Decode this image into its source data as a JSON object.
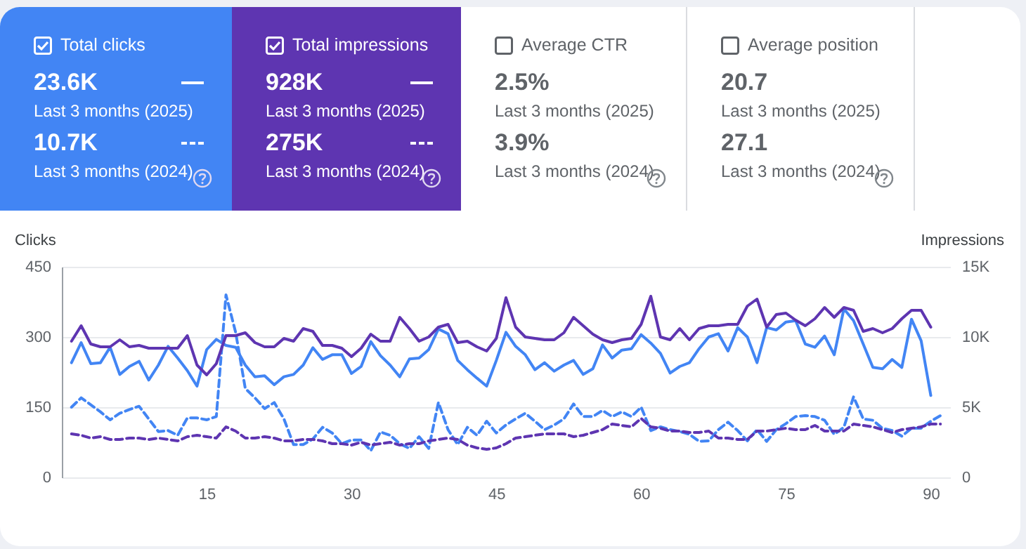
{
  "chart_data": [
    {
      "type": "other",
      "title": "Total clicks",
      "color": "#4285f4",
      "annotations": [
        "23.6K",
        "Last 3 months (2025)",
        "10.7K",
        "Last 3 months (2024)"
      ]
    },
    {
      "type": "other",
      "title": "Total impressions",
      "color": "#5e35b1",
      "annotations": [
        "928K",
        "Last 3 months (2025)",
        "275K",
        "Last 3 months (2024)"
      ]
    },
    {
      "type": "other",
      "title": "Average CTR",
      "annotations": [
        "2.5%",
        "Last 3 months (2025)",
        "3.9%",
        "Last 3 months (2024)"
      ]
    },
    {
      "type": "other",
      "title": "Average position",
      "annotations": [
        "20.7",
        "Last 3 months (2025)",
        "27.1",
        "Last 3 months (2024)"
      ]
    },
    {
      "type": "line",
      "ylabel": "Clicks",
      "y2label": "Impressions",
      "xlim": [
        0,
        92
      ],
      "xticks": [
        15,
        30,
        45,
        60,
        75,
        90
      ],
      "ylim": [
        0,
        450
      ],
      "yticks": [
        0,
        150,
        300,
        450
      ],
      "y2lim": [
        0,
        15000
      ],
      "y2ticks": [
        0,
        {
          "value": 5000,
          "label": "5K"
        },
        {
          "value": 10000,
          "label": "10K"
        },
        {
          "value": 15000,
          "label": "15K"
        }
      ],
      "grid": "y",
      "legend": false,
      "marker": "none",
      "x": [
        1,
        2,
        3,
        4,
        5,
        6,
        7,
        8,
        9,
        10,
        11,
        12,
        13,
        14,
        15,
        16,
        17,
        18,
        19,
        20,
        21,
        22,
        23,
        24,
        25,
        26,
        27,
        28,
        29,
        30,
        31,
        32,
        33,
        34,
        35,
        36,
        37,
        38,
        39,
        40,
        41,
        42,
        43,
        44,
        45,
        46,
        47,
        48,
        49,
        50,
        51,
        52,
        53,
        54,
        55,
        56,
        57,
        58,
        59,
        60,
        61,
        62,
        63,
        64,
        65,
        66,
        67,
        68,
        69,
        70,
        71,
        72,
        73,
        74,
        75,
        76,
        77,
        78,
        79,
        80,
        81,
        82,
        83,
        84,
        85,
        86,
        87,
        88,
        89,
        90
      ],
      "series": [
        {
          "color": "#5e35b1",
          "axis": "y2",
          "line_style": "solid",
          "values": [
            9700,
            10800,
            9500,
            9300,
            9300,
            9800,
            9300,
            9400,
            9200,
            9200,
            9200,
            9200,
            10100,
            8000,
            7300,
            8100,
            10100,
            10100,
            10300,
            9600,
            9300,
            9300,
            9900,
            9700,
            10600,
            10400,
            9400,
            9400,
            9200,
            8600,
            9200,
            10200,
            9700,
            9700,
            11400,
            10600,
            9700,
            10000,
            10700,
            10900,
            9600,
            9700,
            9300,
            9000,
            9900,
            12800,
            10700,
            10000,
            9900,
            9800,
            9800,
            10300,
            11400,
            10800,
            10200,
            9800,
            9600,
            9800,
            9900,
            10900,
            12900,
            10000,
            9800,
            10600,
            9800,
            10600,
            10800,
            10800,
            10900,
            10900,
            12200,
            12700,
            10700,
            11600,
            11700,
            11200,
            10800,
            11300,
            12100,
            11400,
            12100,
            11900,
            10400,
            10600,
            10300,
            10600,
            11300,
            11900,
            11900,
            10700
          ]
        },
        {
          "color": "#4285f4",
          "axis": "y",
          "line_style": "solid",
          "values": [
            245,
            288,
            243,
            245,
            278,
            220,
            237,
            248,
            208,
            240,
            280,
            255,
            228,
            195,
            273,
            295,
            282,
            278,
            240,
            215,
            217,
            198,
            215,
            220,
            240,
            277,
            252,
            262,
            262,
            222,
            237,
            290,
            260,
            240,
            215,
            253,
            255,
            273,
            317,
            307,
            250,
            230,
            212,
            195,
            250,
            310,
            280,
            262,
            230,
            245,
            227,
            240,
            250,
            220,
            232,
            283,
            255,
            272,
            275,
            305,
            287,
            265,
            223,
            237,
            245,
            275,
            300,
            307,
            270,
            320,
            300,
            245,
            320,
            315,
            332,
            335,
            285,
            278,
            302,
            262,
            360,
            335,
            285,
            235,
            232,
            252,
            235,
            338,
            292,
            175
          ]
        },
        {
          "color": "#5e35b1",
          "axis": "y2",
          "line_style": "dashed",
          "x": [
            1,
            2,
            3,
            4,
            5,
            6,
            7,
            8,
            9,
            10,
            11,
            12,
            13,
            14,
            15,
            16,
            17,
            18,
            19,
            20,
            21,
            22,
            23,
            24,
            25,
            26,
            27,
            28,
            29,
            30,
            31,
            32,
            33,
            34,
            35,
            36,
            37,
            38,
            39,
            40,
            41,
            42,
            43,
            44,
            45,
            46,
            47,
            48,
            49,
            50,
            51,
            52,
            53,
            54,
            55,
            56,
            57,
            58,
            59,
            60,
            61,
            62,
            63,
            64,
            65,
            66,
            67,
            68,
            69,
            70,
            71,
            72,
            73,
            74,
            75,
            76,
            77,
            78,
            79,
            80,
            81,
            82,
            83,
            84,
            85,
            86,
            87,
            88,
            89,
            90,
            91
          ],
          "values": [
            3100,
            3000,
            2800,
            2900,
            2700,
            2700,
            2800,
            2800,
            2700,
            2800,
            2700,
            2600,
            2900,
            3000,
            2900,
            2800,
            3600,
            3300,
            2800,
            2800,
            2900,
            2800,
            2600,
            2600,
            2700,
            2700,
            2600,
            2400,
            2400,
            2300,
            2500,
            2300,
            2400,
            2500,
            2300,
            2400,
            2400,
            2600,
            2700,
            2800,
            2700,
            2300,
            2100,
            2000,
            2100,
            2400,
            2800,
            2900,
            3000,
            3100,
            3100,
            3100,
            2900,
            3000,
            3200,
            3400,
            3800,
            3700,
            3600,
            4200,
            3600,
            3500,
            3300,
            3300,
            3200,
            3200,
            3300,
            2800,
            2800,
            2700,
            2700,
            3300,
            3300,
            3400,
            3500,
            3400,
            3400,
            3700,
            3300,
            3300,
            3300,
            3800,
            3700,
            3600,
            3400,
            3200,
            3400,
            3500,
            3600,
            3800,
            3800
          ]
        },
        {
          "color": "#4285f4",
          "axis": "y",
          "line_style": "dashed",
          "x": [
            1,
            2,
            3,
            4,
            5,
            6,
            7,
            8,
            9,
            10,
            11,
            12,
            13,
            14,
            15,
            16,
            17,
            18,
            19,
            20,
            21,
            22,
            23,
            24,
            25,
            26,
            27,
            28,
            29,
            30,
            31,
            32,
            33,
            34,
            35,
            36,
            37,
            38,
            39,
            40,
            41,
            42,
            43,
            44,
            45,
            46,
            47,
            48,
            49,
            50,
            51,
            52,
            53,
            54,
            55,
            56,
            57,
            58,
            59,
            60,
            61,
            62,
            63,
            64,
            65,
            66,
            67,
            68,
            69,
            70,
            71,
            72,
            73,
            74,
            75,
            76,
            77,
            78,
            79,
            80,
            81,
            82,
            83,
            84,
            85,
            86,
            87,
            88,
            89,
            90,
            91
          ],
          "values": [
            150,
            170,
            155,
            140,
            123,
            137,
            145,
            152,
            125,
            98,
            100,
            90,
            127,
            127,
            123,
            130,
            390,
            310,
            190,
            170,
            147,
            160,
            125,
            70,
            70,
            82,
            107,
            95,
            72,
            80,
            80,
            57,
            97,
            90,
            72,
            62,
            87,
            62,
            160,
            102,
            70,
            107,
            90,
            120,
            95,
            112,
            125,
            137,
            120,
            102,
            112,
            125,
            157,
            130,
            130,
            143,
            130,
            140,
            130,
            150,
            100,
            108,
            102,
            98,
            92,
            77,
            78,
            102,
            118,
            100,
            78,
            102,
            77,
            102,
            115,
            130,
            132,
            130,
            122,
            92,
            107,
            172,
            125,
            122,
            105,
            100,
            88,
            105,
            105,
            120,
            132
          ]
        }
      ]
    }
  ]
}
